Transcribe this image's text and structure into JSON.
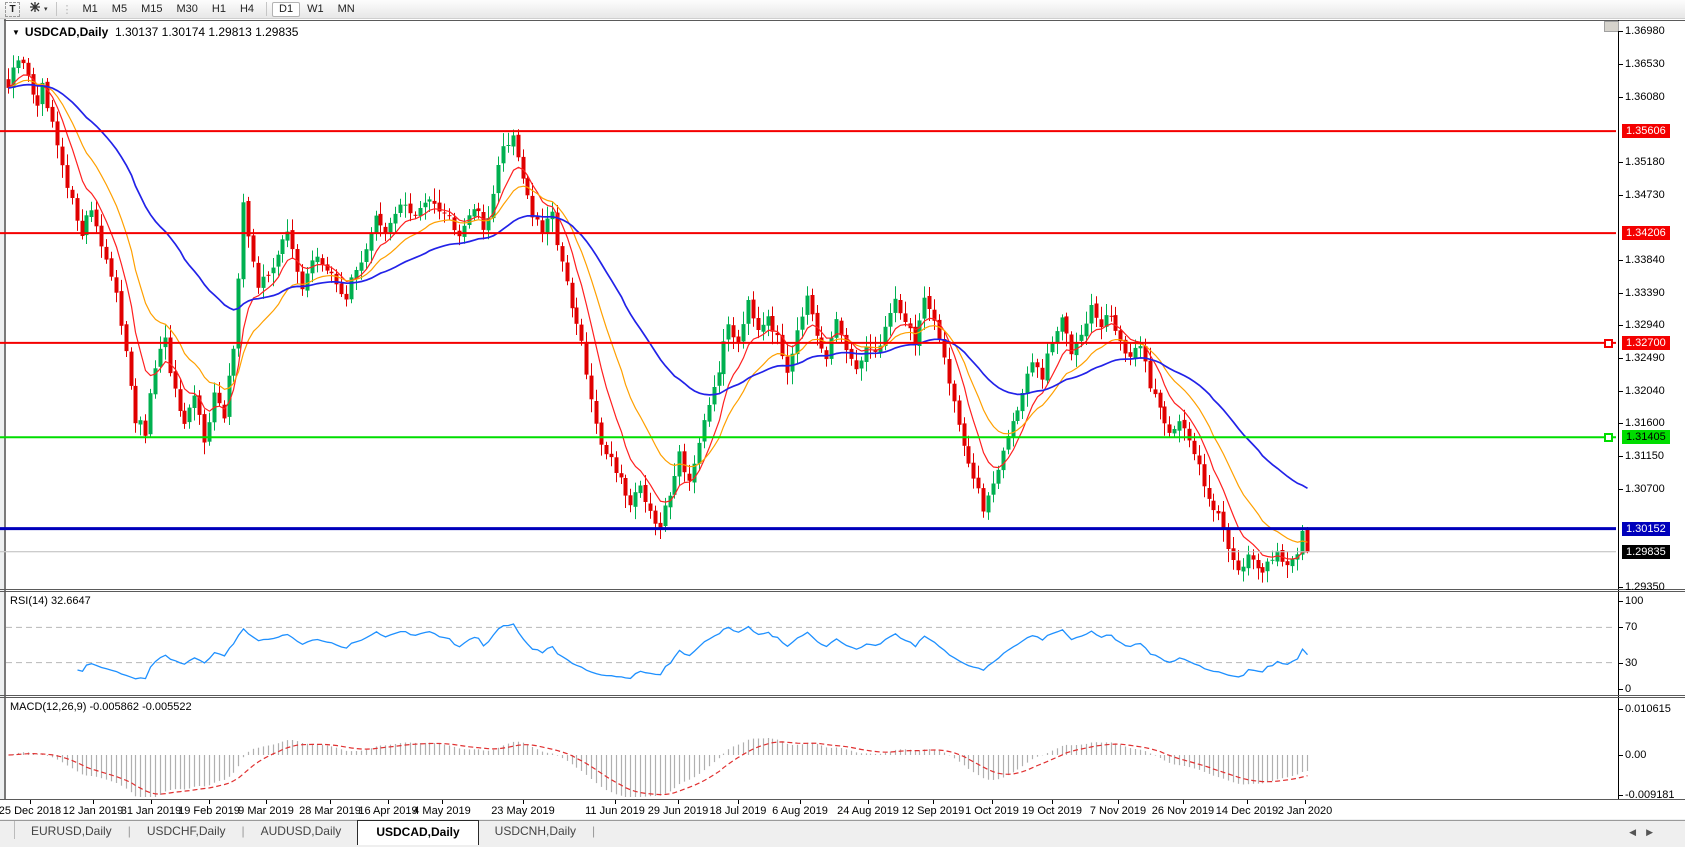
{
  "toolbar": {
    "tool_button": "T",
    "timeframes": [
      "M1",
      "M5",
      "M15",
      "M30",
      "H1",
      "H4",
      "D1",
      "W1",
      "MN"
    ],
    "active_timeframe": "D1"
  },
  "chart": {
    "title": "USDCAD,Daily",
    "ohlc_text": "1.30137 1.30174 1.29813 1.29835",
    "hlines": [
      {
        "price": 1.35606,
        "label": "1.35606",
        "color": "#f40000",
        "bg": "#f40000",
        "fg": "#ffffff",
        "thickness": 2,
        "handle": false
      },
      {
        "price": 1.34206,
        "label": "1.34206",
        "color": "#f40000",
        "bg": "#f40000",
        "fg": "#ffffff",
        "thickness": 2,
        "handle": false
      },
      {
        "price": 1.327,
        "label": "1.32700",
        "color": "#f40000",
        "bg": "#f40000",
        "fg": "#ffffff",
        "thickness": 2,
        "handle": true
      },
      {
        "price": 1.31405,
        "label": "1.31405",
        "color": "#00dd00",
        "bg": "#00dd00",
        "fg": "#000000",
        "thickness": 2,
        "handle": true
      },
      {
        "price": 1.30152,
        "label": "1.30152",
        "color": "#0000bb",
        "bg": "#0000bb",
        "fg": "#ffffff",
        "thickness": 3,
        "handle": false
      },
      {
        "price": 1.29835,
        "label": "1.29835",
        "color": "#c8c8c8",
        "bg": "#000000",
        "fg": "#ffffff",
        "thickness": 1,
        "handle": false
      }
    ]
  },
  "price_axis": {
    "ticks": [
      "1.36980",
      "1.36530",
      "1.36080",
      "1.35180",
      "1.34730",
      "1.33840",
      "1.33390",
      "1.32940",
      "1.32490",
      "1.32040",
      "1.31600",
      "1.31150",
      "1.30700",
      "1.29350"
    ]
  },
  "indicators": {
    "rsi": {
      "label": "RSI(14) 32.6647",
      "scale": [
        100,
        70,
        30,
        0
      ],
      "levels": [
        70,
        30
      ]
    },
    "macd": {
      "label": "MACD(12,26,9) -0.005862 -0.005522",
      "scale": [
        {
          "label": "0.010615",
          "value": 0.010615
        },
        {
          "label": "0.00",
          "value": 0
        },
        {
          "label": "-0.009181",
          "value": -0.009181
        }
      ]
    }
  },
  "date_axis": {
    "dates": [
      "25 Dec 2018",
      "12 Jan 2019",
      "31 Jan 2019",
      "19 Feb 2019",
      "9 Mar 2019",
      "28 Mar 2019",
      "16 Apr 2019",
      "4 May 2019",
      "23 May 2019",
      "11 Jun 2019",
      "29 Jun 2019",
      "18 Jul 2019",
      "6 Aug 2019",
      "24 Aug 2019",
      "12 Sep 2019",
      "1 Oct 2019",
      "19 Oct 2019",
      "7 Nov 2019",
      "26 Nov 2019",
      "14 Dec 2019",
      "2 Jan 2020"
    ]
  },
  "tabs": {
    "items": [
      {
        "id": "eurusd",
        "label": "EURUSD,Daily",
        "active": false
      },
      {
        "id": "usdchf",
        "label": "USDCHF,Daily",
        "active": false
      },
      {
        "id": "audusd",
        "label": "AUDUSD,Daily",
        "active": false
      },
      {
        "id": "usdcad",
        "label": "USDCAD,Daily",
        "active": true
      },
      {
        "id": "usdcnh",
        "label": "USDCNH,Daily",
        "active": false
      }
    ]
  },
  "colors": {
    "bull": "#00b050",
    "bear": "#e00000",
    "ma_fast": "#ff2020",
    "ma_mid": "#ffa000",
    "ma_slow": "#2222e8",
    "rsi_line": "#1e90ff",
    "rsi_level": "#b8b8b8",
    "macd_hist": "#b0b0b0",
    "macd_signal": "#e03030",
    "current_price_line": "#c8c8c8"
  },
  "chart_data": {
    "type": "candlestick",
    "symbol": "USDCAD",
    "timeframe": "Daily",
    "bars_total": 266,
    "ylim": [
      1.2931,
      1.3712
    ],
    "last_bar": {
      "open": 1.30137,
      "high": 1.30174,
      "low": 1.29813,
      "close": 1.29835
    },
    "horizontal_levels": [
      1.35606,
      1.34206,
      1.327,
      1.31405,
      1.30152,
      1.29835
    ],
    "moving_averages": [
      {
        "name": "fast",
        "period": 8,
        "color": "#ff2020"
      },
      {
        "name": "mid",
        "period": 17,
        "color": "#ffa000"
      },
      {
        "name": "slow",
        "period": 45,
        "color": "#2222e8"
      }
    ],
    "rsi": {
      "period": 14,
      "last_value": 32.6647,
      "levels": [
        70,
        30
      ],
      "range": [
        0,
        100
      ]
    },
    "macd": {
      "fast": 12,
      "slow": 26,
      "signal": 9,
      "last_main": -0.005862,
      "last_signal": -0.005522,
      "scale_max": 0.010615,
      "scale_min": -0.009181
    },
    "x_dates": [
      "25 Dec 2018",
      "12 Jan 2019",
      "31 Jan 2019",
      "19 Feb 2019",
      "9 Mar 2019",
      "28 Mar 2019",
      "16 Apr 2019",
      "4 May 2019",
      "23 May 2019",
      "11 Jun 2019",
      "29 Jun 2019",
      "18 Jul 2019",
      "6 Aug 2019",
      "24 Aug 2019",
      "12 Sep 2019",
      "1 Oct 2019",
      "19 Oct 2019",
      "7 Nov 2019",
      "26 Nov 2019",
      "14 Dec 2019",
      "2 Jan 2020"
    ],
    "close_path": [
      [
        0,
        1.362
      ],
      [
        2,
        1.3658
      ],
      [
        4,
        1.364
      ],
      [
        6,
        1.359
      ],
      [
        7,
        1.3618
      ],
      [
        9,
        1.3565
      ],
      [
        12,
        1.348
      ],
      [
        15,
        1.3425
      ],
      [
        17,
        1.3455
      ],
      [
        20,
        1.3385
      ],
      [
        22,
        1.333
      ],
      [
        24,
        1.3265
      ],
      [
        26,
        1.3165
      ],
      [
        28,
        1.3145
      ],
      [
        30,
        1.324
      ],
      [
        32,
        1.327
      ],
      [
        34,
        1.32
      ],
      [
        36,
        1.315
      ],
      [
        38,
        1.3195
      ],
      [
        40,
        1.314
      ],
      [
        42,
        1.32
      ],
      [
        44,
        1.3165
      ],
      [
        46,
        1.327
      ],
      [
        48,
        1.346
      ],
      [
        49,
        1.342
      ],
      [
        51,
        1.334
      ],
      [
        54,
        1.338
      ],
      [
        57,
        1.342
      ],
      [
        60,
        1.335
      ],
      [
        63,
        1.339
      ],
      [
        66,
        1.336
      ],
      [
        69,
        1.3335
      ],
      [
        72,
        1.3385
      ],
      [
        75,
        1.344
      ],
      [
        77,
        1.3415
      ],
      [
        80,
        1.3465
      ],
      [
        83,
        1.344
      ],
      [
        86,
        1.3475
      ],
      [
        89,
        1.345
      ],
      [
        92,
        1.3425
      ],
      [
        95,
        1.346
      ],
      [
        97,
        1.3425
      ],
      [
        99,
        1.3475
      ],
      [
        101,
        1.354
      ],
      [
        103,
        1.3555
      ],
      [
        105,
        1.35
      ],
      [
        107,
        1.3445
      ],
      [
        109,
        1.342
      ],
      [
        111,
        1.3445
      ],
      [
        113,
        1.338
      ],
      [
        115,
        1.3315
      ],
      [
        117,
        1.327
      ],
      [
        119,
        1.3185
      ],
      [
        121,
        1.3135
      ],
      [
        123,
        1.311
      ],
      [
        125,
        1.3085
      ],
      [
        127,
        1.305
      ],
      [
        129,
        1.3078
      ],
      [
        131,
        1.3032
      ],
      [
        133,
        1.3015
      ],
      [
        135,
        1.3068
      ],
      [
        137,
        1.3118
      ],
      [
        139,
        1.3082
      ],
      [
        141,
        1.3125
      ],
      [
        143,
        1.3185
      ],
      [
        145,
        1.3235
      ],
      [
        147,
        1.3295
      ],
      [
        149,
        1.3272
      ],
      [
        151,
        1.3332
      ],
      [
        153,
        1.3292
      ],
      [
        155,
        1.3312
      ],
      [
        157,
        1.3272
      ],
      [
        159,
        1.3235
      ],
      [
        161,
        1.3292
      ],
      [
        163,
        1.333
      ],
      [
        165,
        1.3272
      ],
      [
        167,
        1.3245
      ],
      [
        169,
        1.3302
      ],
      [
        171,
        1.3262
      ],
      [
        173,
        1.3225
      ],
      [
        175,
        1.3272
      ],
      [
        177,
        1.3252
      ],
      [
        179,
        1.3292
      ],
      [
        181,
        1.333
      ],
      [
        183,
        1.3302
      ],
      [
        185,
        1.3272
      ],
      [
        187,
        1.333
      ],
      [
        189,
        1.3292
      ],
      [
        191,
        1.3252
      ],
      [
        193,
        1.3192
      ],
      [
        195,
        1.3132
      ],
      [
        197,
        1.3082
      ],
      [
        199,
        1.3042
      ],
      [
        201,
        1.3082
      ],
      [
        203,
        1.3122
      ],
      [
        205,
        1.3162
      ],
      [
        207,
        1.3202
      ],
      [
        209,
        1.3242
      ],
      [
        211,
        1.3222
      ],
      [
        213,
        1.3272
      ],
      [
        215,
        1.33
      ],
      [
        217,
        1.3262
      ],
      [
        219,
        1.329
      ],
      [
        221,
        1.3318
      ],
      [
        223,
        1.3292
      ],
      [
        225,
        1.331
      ],
      [
        227,
        1.3272
      ],
      [
        229,
        1.3242
      ],
      [
        231,
        1.3272
      ],
      [
        233,
        1.3212
      ],
      [
        235,
        1.3182
      ],
      [
        237,
        1.3152
      ],
      [
        239,
        1.3162
      ],
      [
        241,
        1.3132
      ],
      [
        243,
        1.3102
      ],
      [
        245,
        1.3062
      ],
      [
        247,
        1.3032
      ],
      [
        249,
        1.2992
      ],
      [
        251,
        1.2962
      ],
      [
        253,
        1.2978
      ],
      [
        255,
        1.2952
      ],
      [
        257,
        1.2968
      ],
      [
        259,
        1.2988
      ],
      [
        261,
        1.2958
      ],
      [
        263,
        1.2982
      ],
      [
        264,
        1.3012
      ],
      [
        265,
        1.29835
      ]
    ]
  }
}
